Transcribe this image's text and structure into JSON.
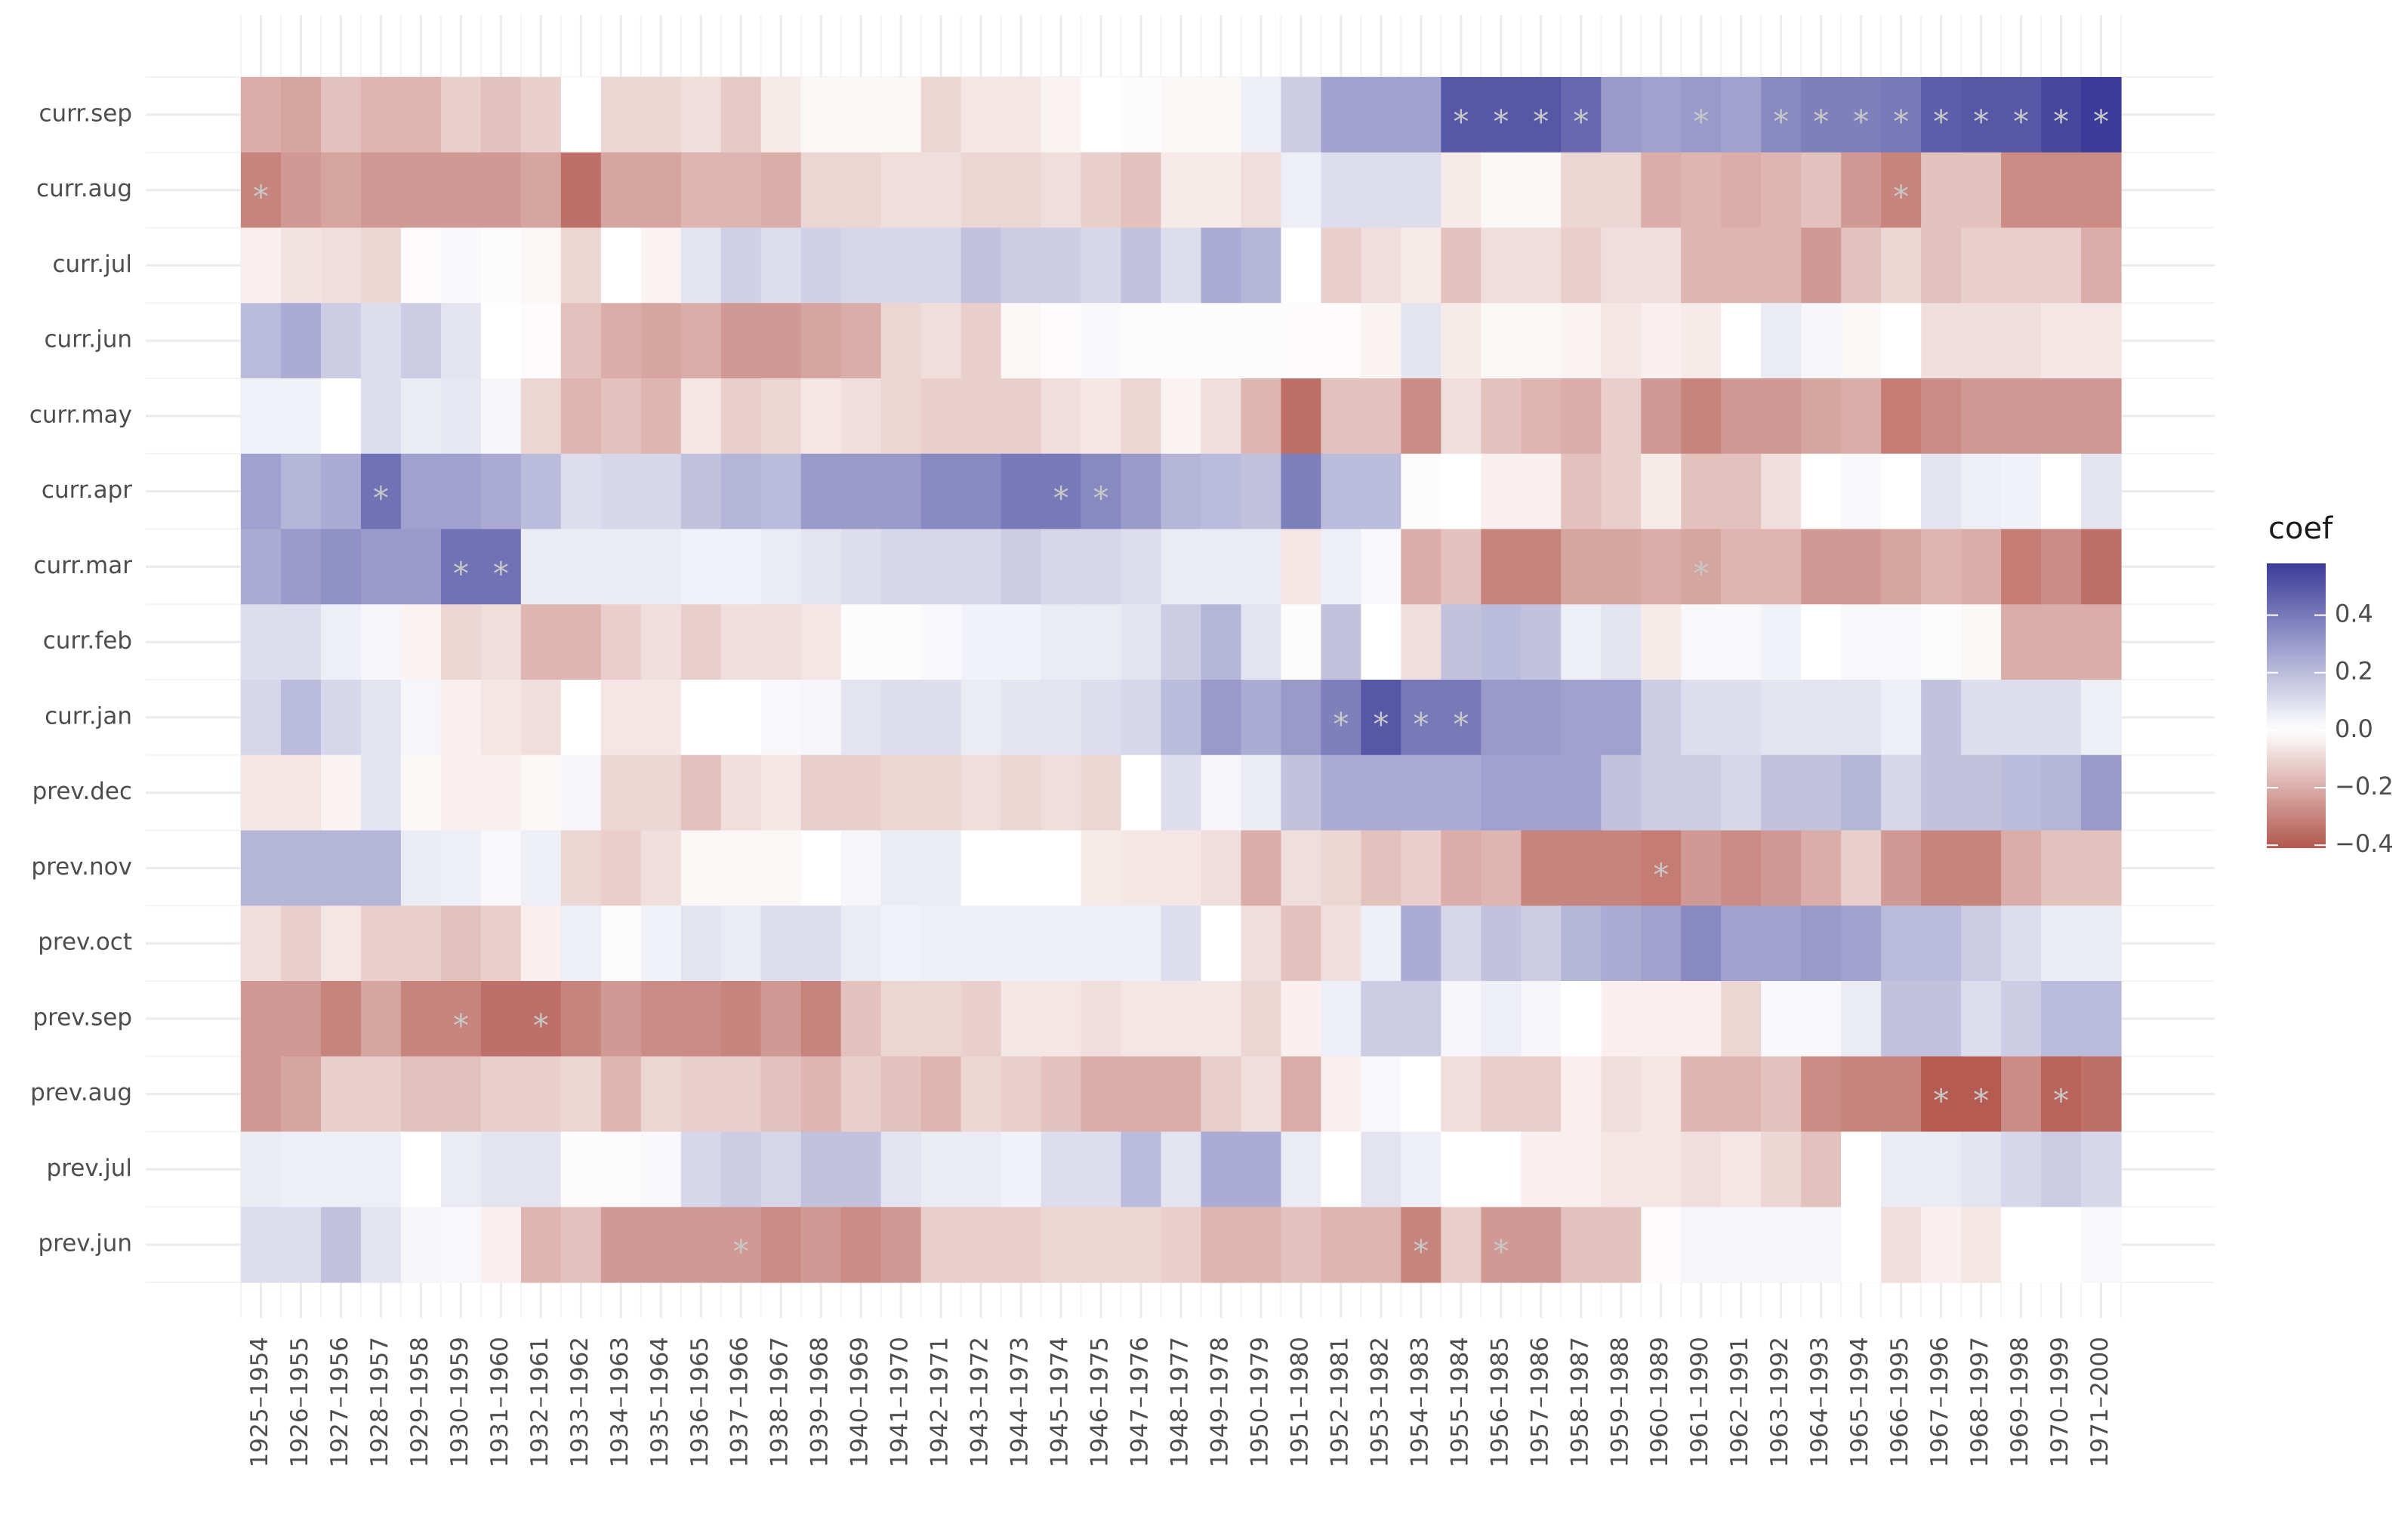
{
  "chart_data": {
    "type": "heatmap",
    "legend_title": "coef",
    "x": [
      "1925–1954",
      "1926–1955",
      "1927–1956",
      "1928–1957",
      "1929–1958",
      "1930–1959",
      "1931–1960",
      "1932–1961",
      "1933–1962",
      "1934–1963",
      "1935–1964",
      "1936–1965",
      "1937–1966",
      "1938–1967",
      "1939–1968",
      "1940–1969",
      "1941–1970",
      "1942–1971",
      "1943–1972",
      "1944–1973",
      "1945–1974",
      "1946–1975",
      "1947–1976",
      "1948–1977",
      "1949–1978",
      "1950–1979",
      "1951–1980",
      "1952–1981",
      "1953–1982",
      "1954–1983",
      "1955–1984",
      "1956–1985",
      "1957–1986",
      "1958–1987",
      "1959–1988",
      "1960–1989",
      "1961–1990",
      "1962–1991",
      "1963–1992",
      "1964–1993",
      "1965–1994",
      "1966–1995",
      "1967–1996",
      "1968–1997",
      "1969–1998",
      "1970–1999",
      "1971–2000"
    ],
    "y": [
      "curr.sep",
      "curr.aug",
      "curr.jul",
      "curr.jun",
      "curr.may",
      "curr.apr",
      "curr.mar",
      "curr.feb",
      "curr.jan",
      "prev.dec",
      "prev.nov",
      "prev.oct",
      "prev.sep",
      "prev.aug",
      "prev.jul",
      "prev.jun"
    ],
    "z": [
      [
        -0.2,
        -0.22,
        -0.15,
        -0.18,
        -0.18,
        -0.12,
        -0.15,
        -0.12,
        0.0,
        -0.1,
        -0.1,
        -0.08,
        -0.13,
        -0.05,
        -0.02,
        -0.02,
        -0.02,
        -0.1,
        -0.06,
        -0.06,
        -0.03,
        0.0,
        0.01,
        -0.02,
        -0.02,
        0.05,
        0.15,
        0.28,
        0.28,
        0.28,
        0.5,
        0.5,
        0.5,
        0.45,
        0.3,
        0.28,
        0.3,
        0.28,
        0.35,
        0.38,
        0.38,
        0.4,
        0.48,
        0.5,
        0.5,
        0.55,
        0.58
      ],
      [
        -0.3,
        -0.25,
        -0.22,
        -0.25,
        -0.25,
        -0.25,
        -0.25,
        -0.22,
        -0.35,
        -0.22,
        -0.22,
        -0.18,
        -0.18,
        -0.2,
        -0.1,
        -0.1,
        -0.08,
        -0.08,
        -0.1,
        -0.1,
        -0.08,
        -0.12,
        -0.15,
        -0.05,
        -0.05,
        -0.08,
        0.05,
        0.1,
        0.1,
        0.1,
        -0.05,
        -0.02,
        -0.02,
        -0.1,
        -0.1,
        -0.2,
        -0.18,
        -0.2,
        -0.18,
        -0.15,
        -0.25,
        -0.3,
        -0.15,
        -0.15,
        -0.28,
        -0.28,
        -0.28
      ],
      [
        -0.04,
        -0.07,
        -0.08,
        -0.1,
        -0.01,
        0.02,
        0.01,
        -0.02,
        -0.1,
        0.0,
        -0.03,
        0.08,
        0.14,
        0.1,
        0.14,
        0.12,
        0.12,
        0.12,
        0.18,
        0.15,
        0.15,
        0.12,
        0.18,
        0.1,
        0.25,
        0.22,
        0.0,
        -0.12,
        -0.08,
        -0.05,
        -0.15,
        -0.08,
        -0.08,
        -0.12,
        -0.08,
        -0.08,
        -0.18,
        -0.18,
        -0.18,
        -0.25,
        -0.15,
        -0.1,
        -0.15,
        -0.12,
        -0.12,
        -0.12,
        -0.2
      ],
      [
        0.2,
        0.25,
        0.15,
        0.1,
        0.15,
        0.08,
        0.0,
        -0.01,
        -0.15,
        -0.2,
        -0.22,
        -0.2,
        -0.25,
        -0.25,
        -0.22,
        -0.2,
        -0.1,
        -0.08,
        -0.12,
        -0.02,
        -0.01,
        0.02,
        0.01,
        0.01,
        0.01,
        0.01,
        -0.01,
        -0.01,
        -0.03,
        0.08,
        -0.05,
        -0.02,
        -0.02,
        -0.03,
        -0.06,
        -0.04,
        -0.05,
        0.0,
        0.06,
        0.03,
        -0.02,
        0.0,
        -0.08,
        -0.08,
        -0.08,
        -0.06,
        -0.06
      ],
      [
        0.04,
        0.04,
        0.0,
        0.1,
        0.06,
        0.07,
        0.03,
        -0.1,
        -0.18,
        -0.15,
        -0.18,
        -0.06,
        -0.12,
        -0.1,
        -0.06,
        -0.08,
        -0.1,
        -0.12,
        -0.12,
        -0.12,
        -0.08,
        -0.06,
        -0.1,
        -0.03,
        -0.08,
        -0.18,
        -0.35,
        -0.15,
        -0.15,
        -0.28,
        -0.08,
        -0.15,
        -0.18,
        -0.2,
        -0.12,
        -0.25,
        -0.3,
        -0.25,
        -0.25,
        -0.22,
        -0.2,
        -0.32,
        -0.28,
        -0.25,
        -0.25,
        -0.25,
        -0.25
      ],
      [
        0.28,
        0.22,
        0.25,
        0.42,
        0.28,
        0.28,
        0.25,
        0.2,
        0.1,
        0.12,
        0.12,
        0.18,
        0.22,
        0.2,
        0.3,
        0.3,
        0.3,
        0.35,
        0.35,
        0.4,
        0.4,
        0.35,
        0.3,
        0.22,
        0.2,
        0.18,
        0.38,
        0.2,
        0.2,
        0.01,
        0.0,
        -0.04,
        -0.04,
        -0.15,
        -0.12,
        -0.05,
        -0.15,
        -0.15,
        -0.08,
        0.0,
        0.02,
        0.0,
        0.08,
        0.05,
        0.04,
        0.0,
        0.08
      ],
      [
        0.25,
        0.3,
        0.33,
        0.3,
        0.3,
        0.42,
        0.42,
        0.06,
        0.06,
        0.06,
        0.06,
        0.04,
        0.04,
        0.06,
        0.08,
        0.1,
        0.12,
        0.12,
        0.12,
        0.15,
        0.12,
        0.12,
        0.1,
        0.06,
        0.06,
        0.06,
        -0.06,
        0.05,
        0.02,
        -0.2,
        -0.15,
        -0.3,
        -0.3,
        -0.22,
        -0.22,
        -0.2,
        -0.22,
        -0.18,
        -0.18,
        -0.25,
        -0.25,
        -0.22,
        -0.18,
        -0.2,
        -0.32,
        -0.28,
        -0.35
      ],
      [
        0.1,
        0.1,
        0.05,
        0.03,
        -0.03,
        -0.1,
        -0.08,
        -0.18,
        -0.18,
        -0.12,
        -0.08,
        -0.12,
        -0.08,
        -0.08,
        -0.06,
        0.01,
        0.01,
        0.02,
        0.04,
        0.04,
        0.06,
        0.06,
        0.08,
        0.15,
        0.22,
        0.08,
        0.01,
        0.18,
        0.0,
        -0.08,
        0.18,
        0.2,
        0.18,
        0.05,
        0.08,
        -0.05,
        0.02,
        0.02,
        0.04,
        0.0,
        0.02,
        0.02,
        0.01,
        -0.02,
        -0.2,
        -0.2,
        -0.2
      ],
      [
        0.12,
        0.2,
        0.12,
        0.08,
        0.03,
        -0.04,
        -0.06,
        -0.08,
        0.0,
        -0.06,
        -0.06,
        0.0,
        0.0,
        0.02,
        0.03,
        0.08,
        0.1,
        0.1,
        0.06,
        0.08,
        0.08,
        0.1,
        0.12,
        0.2,
        0.3,
        0.25,
        0.3,
        0.38,
        0.5,
        0.4,
        0.4,
        0.3,
        0.3,
        0.28,
        0.28,
        0.15,
        0.1,
        0.1,
        0.08,
        0.08,
        0.08,
        0.05,
        0.18,
        0.1,
        0.1,
        0.1,
        0.05
      ],
      [
        -0.06,
        -0.06,
        -0.03,
        0.08,
        -0.02,
        -0.04,
        -0.04,
        -0.02,
        0.03,
        -0.1,
        -0.1,
        -0.15,
        -0.08,
        -0.06,
        -0.12,
        -0.12,
        -0.1,
        -0.1,
        -0.08,
        -0.1,
        -0.08,
        -0.1,
        0.0,
        0.1,
        0.03,
        0.06,
        0.18,
        0.25,
        0.25,
        0.25,
        0.25,
        0.28,
        0.28,
        0.28,
        0.18,
        0.15,
        0.15,
        0.12,
        0.18,
        0.18,
        0.22,
        0.12,
        0.18,
        0.18,
        0.2,
        0.22,
        0.3
      ],
      [
        0.22,
        0.22,
        0.22,
        0.22,
        0.06,
        0.05,
        0.02,
        0.05,
        -0.1,
        -0.12,
        -0.08,
        -0.02,
        -0.02,
        -0.02,
        0.0,
        0.03,
        0.06,
        0.06,
        0.0,
        0.0,
        0.0,
        -0.05,
        -0.06,
        -0.06,
        -0.08,
        -0.2,
        -0.08,
        -0.1,
        -0.15,
        -0.12,
        -0.2,
        -0.18,
        -0.3,
        -0.3,
        -0.3,
        -0.32,
        -0.25,
        -0.28,
        -0.25,
        -0.2,
        -0.12,
        -0.25,
        -0.3,
        -0.3,
        -0.2,
        -0.15,
        -0.15
      ],
      [
        -0.08,
        -0.12,
        -0.06,
        -0.12,
        -0.12,
        -0.15,
        -0.12,
        -0.04,
        0.05,
        0.01,
        0.04,
        0.08,
        0.06,
        0.1,
        0.1,
        0.06,
        0.04,
        0.05,
        0.05,
        0.05,
        0.05,
        0.05,
        0.05,
        0.1,
        0.0,
        -0.08,
        -0.15,
        -0.08,
        0.05,
        0.25,
        0.12,
        0.18,
        0.15,
        0.22,
        0.25,
        0.28,
        0.35,
        0.28,
        0.28,
        0.3,
        0.28,
        0.2,
        0.2,
        0.15,
        0.1,
        0.06,
        0.06
      ],
      [
        -0.25,
        -0.25,
        -0.3,
        -0.22,
        -0.3,
        -0.3,
        -0.35,
        -0.35,
        -0.3,
        -0.25,
        -0.28,
        -0.28,
        -0.3,
        -0.25,
        -0.3,
        -0.15,
        -0.1,
        -0.1,
        -0.12,
        -0.06,
        -0.06,
        -0.08,
        -0.06,
        -0.06,
        -0.06,
        -0.1,
        -0.04,
        0.05,
        0.15,
        0.15,
        0.03,
        0.05,
        0.03,
        0.0,
        -0.04,
        -0.04,
        -0.04,
        -0.1,
        0.02,
        0.02,
        0.06,
        0.18,
        0.18,
        0.1,
        0.15,
        0.2,
        0.2
      ],
      [
        -0.25,
        -0.22,
        -0.12,
        -0.12,
        -0.15,
        -0.15,
        -0.12,
        -0.12,
        -0.1,
        -0.18,
        -0.1,
        -0.12,
        -0.12,
        -0.15,
        -0.18,
        -0.12,
        -0.15,
        -0.18,
        -0.1,
        -0.12,
        -0.15,
        -0.2,
        -0.2,
        -0.2,
        -0.12,
        -0.08,
        -0.2,
        -0.04,
        0.02,
        0.0,
        -0.08,
        -0.12,
        -0.12,
        -0.04,
        -0.08,
        -0.06,
        -0.18,
        -0.18,
        -0.15,
        -0.28,
        -0.3,
        -0.3,
        -0.4,
        -0.4,
        -0.28,
        -0.38,
        -0.35
      ],
      [
        0.06,
        0.05,
        0.05,
        0.05,
        0.0,
        0.06,
        0.08,
        0.08,
        0.01,
        0.01,
        0.02,
        0.12,
        0.15,
        0.12,
        0.18,
        0.18,
        0.08,
        0.06,
        0.06,
        0.04,
        0.1,
        0.1,
        0.2,
        0.08,
        0.25,
        0.25,
        0.06,
        0.0,
        0.08,
        0.05,
        0.0,
        0.0,
        -0.04,
        -0.04,
        -0.06,
        -0.06,
        -0.08,
        -0.06,
        -0.1,
        -0.15,
        0.0,
        0.06,
        0.06,
        0.08,
        0.12,
        0.15,
        0.12
      ],
      [
        0.1,
        0.1,
        0.18,
        0.08,
        0.03,
        0.02,
        -0.04,
        -0.18,
        -0.15,
        -0.25,
        -0.25,
        -0.25,
        -0.25,
        -0.28,
        -0.25,
        -0.28,
        -0.25,
        -0.12,
        -0.12,
        -0.12,
        -0.1,
        -0.1,
        -0.1,
        -0.12,
        -0.18,
        -0.18,
        -0.15,
        -0.18,
        -0.18,
        -0.3,
        -0.12,
        -0.25,
        -0.25,
        -0.15,
        -0.15,
        -0.01,
        0.03,
        0.03,
        0.03,
        0.03,
        0.0,
        -0.08,
        -0.04,
        -0.06,
        0.0,
        0.0,
        0.02
      ]
    ],
    "colorscale": {
      "low": "#b3574e",
      "mid": "#ffffff",
      "high": "#3b3c99",
      "midpoint": 0
    },
    "clim": [
      -0.41,
      0.58
    ],
    "colorbar_ticks": [
      {
        "value": -0.4,
        "label": "−0.4"
      },
      {
        "value": -0.2,
        "label": "−0.2"
      },
      {
        "value": 0,
        "label": "0.0"
      },
      0.2,
      0.4
    ],
    "grid": true,
    "annotations": [
      {
        "x": "1955–1984",
        "y": "curr.sep",
        "text": "*"
      },
      {
        "x": "1956–1985",
        "y": "curr.sep",
        "text": "*"
      },
      {
        "x": "1957–1986",
        "y": "curr.sep",
        "text": "*"
      },
      {
        "x": "1958–1987",
        "y": "curr.sep",
        "text": "*"
      },
      {
        "x": "1961–1990",
        "y": "curr.sep",
        "text": "*"
      },
      {
        "x": "1963–1992",
        "y": "curr.sep",
        "text": "*"
      },
      {
        "x": "1964–1993",
        "y": "curr.sep",
        "text": "*"
      },
      {
        "x": "1965–1994",
        "y": "curr.sep",
        "text": "*"
      },
      {
        "x": "1966–1995",
        "y": "curr.sep",
        "text": "*"
      },
      {
        "x": "1967–1996",
        "y": "curr.sep",
        "text": "*"
      },
      {
        "x": "1968–1997",
        "y": "curr.sep",
        "text": "*"
      },
      {
        "x": "1969–1998",
        "y": "curr.sep",
        "text": "*"
      },
      {
        "x": "1970–1999",
        "y": "curr.sep",
        "text": "*"
      },
      {
        "x": "1971–2000",
        "y": "curr.sep",
        "text": "*"
      },
      {
        "x": "1925–1954",
        "y": "curr.aug",
        "text": "*"
      },
      {
        "x": "1966–1995",
        "y": "curr.aug",
        "text": "*"
      },
      {
        "x": "1928–1957",
        "y": "curr.apr",
        "text": "*"
      },
      {
        "x": "1945–1974",
        "y": "curr.apr",
        "text": "*"
      },
      {
        "x": "1946–1975",
        "y": "curr.apr",
        "text": "*"
      },
      {
        "x": "1930–1959",
        "y": "curr.mar",
        "text": "*"
      },
      {
        "x": "1931–1960",
        "y": "curr.mar",
        "text": "*"
      },
      {
        "x": "1961–1990",
        "y": "curr.mar",
        "text": "*"
      },
      {
        "x": "1952–1981",
        "y": "curr.jan",
        "text": "*"
      },
      {
        "x": "1953–1982",
        "y": "curr.jan",
        "text": "*"
      },
      {
        "x": "1954–1983",
        "y": "curr.jan",
        "text": "*"
      },
      {
        "x": "1955–1984",
        "y": "curr.jan",
        "text": "*"
      },
      {
        "x": "1960–1989",
        "y": "prev.nov",
        "text": "*"
      },
      {
        "x": "1930–1959",
        "y": "prev.sep",
        "text": "*"
      },
      {
        "x": "1932–1961",
        "y": "prev.sep",
        "text": "*"
      },
      {
        "x": "1967–1996",
        "y": "prev.aug",
        "text": "*"
      },
      {
        "x": "1968–1997",
        "y": "prev.aug",
        "text": "*"
      },
      {
        "x": "1970–1999",
        "y": "prev.aug",
        "text": "*"
      },
      {
        "x": "1937–1966",
        "y": "prev.jun",
        "text": "*"
      },
      {
        "x": "1954–1983",
        "y": "prev.jun",
        "text": "*"
      },
      {
        "x": "1956–1985",
        "y": "prev.jun",
        "text": "*"
      }
    ]
  }
}
